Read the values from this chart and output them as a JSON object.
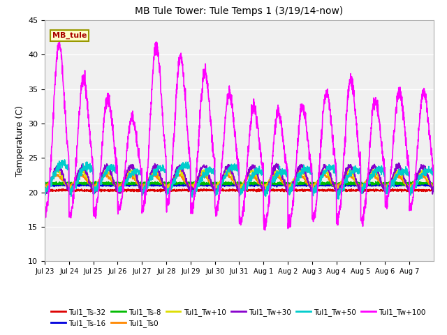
{
  "title": "MB Tule Tower: Tule Temps 1 (3/19/14-now)",
  "ylabel": "Temperature (C)",
  "ylim": [
    10,
    45
  ],
  "yticks": [
    10,
    15,
    20,
    25,
    30,
    35,
    40,
    45
  ],
  "x_tick_labels": [
    "Jul 23",
    "Jul 24",
    "Jul 25",
    "Jul 26",
    "Jul 27",
    "Jul 28",
    "Jul 29",
    "Jul 30",
    "Jul 31",
    "Aug 1",
    "Aug 2",
    "Aug 3",
    "Aug 4",
    "Aug 5",
    "Aug 6",
    "Aug 7"
  ],
  "fig_bg": "#ffffff",
  "plot_bg": "#f0f0f0",
  "grid_color": "#ffffff",
  "series_order": [
    "Tul1_Ts-32",
    "Tul1_Ts-16",
    "Tul1_Ts-8",
    "Tul1_Ts0",
    "Tul1_Tw+10",
    "Tul1_Tw+30",
    "Tul1_Tw+50",
    "Tul1_Tw+100"
  ],
  "series": {
    "Tul1_Ts-32": {
      "color": "#dd0000",
      "lw": 1.2,
      "base": 20.3,
      "amp": 0.15
    },
    "Tul1_Ts-16": {
      "color": "#0000dd",
      "lw": 1.2,
      "base": 21.0,
      "amp": 0.2
    },
    "Tul1_Ts-8": {
      "color": "#00bb00",
      "lw": 1.2,
      "base": 21.3,
      "amp": 0.25
    },
    "Tul1_Ts0": {
      "color": "#ff8800",
      "lw": 1.2,
      "base": 21.7,
      "amp": 1.0
    },
    "Tul1_Tw+10": {
      "color": "#dddd00",
      "lw": 1.2,
      "base": 21.9,
      "amp": 1.3
    },
    "Tul1_Tw+30": {
      "color": "#8800cc",
      "lw": 1.2,
      "base": 22.1,
      "amp": 2.0
    },
    "Tul1_Tw+50": {
      "color": "#00cccc",
      "lw": 1.2,
      "base": 21.5,
      "amp": 4.0
    },
    "Tul1_Tw+100": {
      "color": "#ff00ff",
      "lw": 1.2,
      "base": 21.0,
      "amp": 12.0
    }
  },
  "annotation_box": {
    "text": "MB_tule",
    "fc": "#ffffcc",
    "ec": "#999900",
    "text_color": "#aa0000",
    "fontsize": 8,
    "fontweight": "bold"
  },
  "tw100_peaks": [
    21,
    16,
    13,
    10,
    21,
    19,
    17,
    14,
    12,
    11,
    12,
    14,
    16,
    13,
    14,
    14
  ],
  "tw100_troughs": [
    5,
    5.5,
    5,
    4,
    4.5,
    4,
    4.5,
    4.5,
    6,
    6.5,
    6.5,
    5.5,
    6,
    6,
    3.5,
    4
  ],
  "tw50_peaks": [
    3.5,
    3.0,
    2.8,
    2.2,
    2.8,
    3.2,
    2.5,
    3.0,
    2.2,
    2.2,
    2.5,
    2.8,
    2.5,
    2.5,
    2.2,
    2.2
  ],
  "tw50_troughs": [
    2.5,
    2.5,
    2.2,
    2.0,
    2.2,
    2.5,
    2.5,
    2.5,
    2.2,
    2.2,
    2.2,
    2.2,
    2.5,
    2.0,
    2.0,
    2.0
  ]
}
